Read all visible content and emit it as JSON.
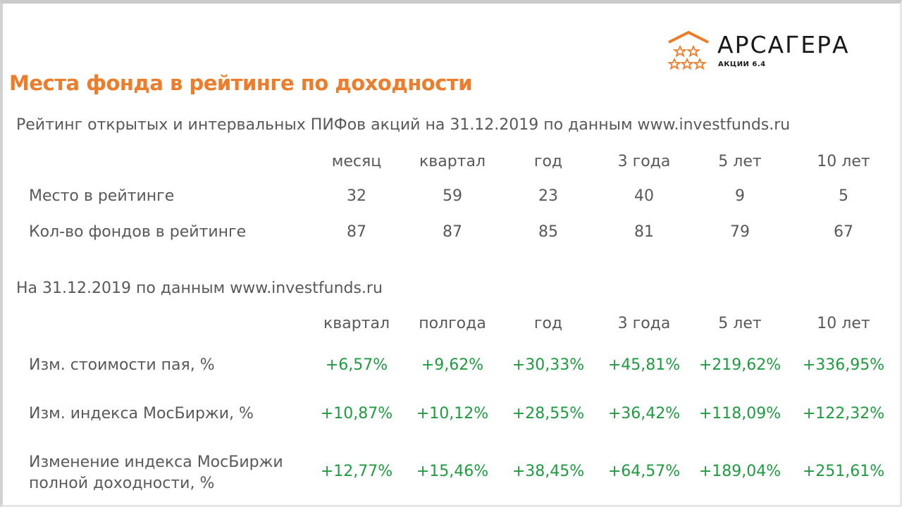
{
  "logo": {
    "name": "АРСАГЕРА",
    "sub": "АКЦИИ 6.4",
    "colors": {
      "mark": "#ee7d2b",
      "text": "#1a1a1a"
    }
  },
  "title": "Места фонда в рейтинге по доходности",
  "rating": {
    "caption": "Рейтинг открытых и интервальных ПИФов акций на 31.12.2019 по данным www.investfunds.ru",
    "headers": [
      "месяц",
      "квартал",
      "год",
      "3 года",
      "5 лет",
      "10 лет"
    ],
    "rows": [
      {
        "label": "Место в рейтинге",
        "values": [
          "32",
          "59",
          "23",
          "40",
          "9",
          "5"
        ]
      },
      {
        "label": "Кол-во фондов в рейтинге",
        "values": [
          "87",
          "87",
          "85",
          "81",
          "79",
          "67"
        ]
      }
    ]
  },
  "returns": {
    "caption": "На 31.12.2019 по данным www.investfunds.ru",
    "headers": [
      "квартал",
      "полгода",
      "год",
      "3 года",
      "5 лет",
      "10 лет"
    ],
    "rows": [
      {
        "label": "Изм. стоимости пая, %",
        "values": [
          "+6,57%",
          "+9,62%",
          "+30,33%",
          "+45,81%",
          "+219,62%",
          "+336,95%"
        ]
      },
      {
        "label": "Изм. индекса МосБиржи, %",
        "values": [
          "+10,87%",
          "+10,12%",
          "+28,55%",
          "+36,42%",
          "+118,09%",
          "+122,32%"
        ]
      },
      {
        "label_line1": "Изменение индекса МосБиржи",
        "label_line2": "полной доходности, %",
        "values": [
          "+12,77%",
          "+15,46%",
          "+38,45%",
          "+64,57%",
          "+189,04%",
          "+251,61%"
        ]
      }
    ]
  },
  "colors": {
    "title": "#ee7d2b",
    "text": "#595959",
    "positive": "#1e9c3f"
  }
}
